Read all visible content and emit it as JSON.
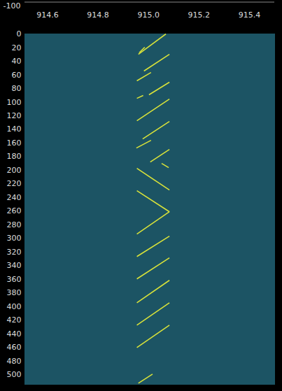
{
  "chart_data": {
    "type": "spectrogram",
    "annotations": [
      "-100"
    ],
    "color": "#d8e23a",
    "xlim": [
      914.51,
      915.5
    ],
    "xticks": [
      914.6,
      914.8,
      {
        "value": 915,
        "label": "915.0"
      },
      915.2,
      915.4
    ],
    "ylim": [
      0,
      514
    ],
    "yticks": [
      0,
      20,
      40,
      60,
      80,
      100,
      120,
      140,
      160,
      180,
      200,
      220,
      240,
      260,
      280,
      300,
      320,
      340,
      360,
      380,
      400,
      420,
      440,
      460,
      480,
      500
    ],
    "segments": [
      {
        "x": [
          914.96,
          915.069
        ],
        "y": [
          29.8,
          0
        ]
      },
      {
        "x": [
          914.963,
          914.985
        ],
        "y": [
          27.7,
          19.5
        ]
      },
      {
        "x": [
          914.982,
          915.083
        ],
        "y": [
          54.4,
          29.8
        ]
      },
      {
        "x": [
          914.954,
          915.01
        ],
        "y": [
          68.8,
          56.5
        ]
      },
      {
        "x": [
          915.002,
          915.083
        ],
        "y": [
          89.3,
          70.8
        ]
      },
      {
        "x": [
          914.954,
          914.979
        ],
        "y": [
          94.5,
          90.3
        ]
      },
      {
        "x": [
          914.954,
          915.083
        ],
        "y": [
          127.3,
          95.5
        ]
      },
      {
        "x": [
          914.977,
          915.083
        ],
        "y": [
          154.0,
          128.3
        ]
      },
      {
        "x": [
          914.952,
          915.01
        ],
        "y": [
          167.4,
          156.1
        ]
      },
      {
        "x": [
          915.007,
          915.083
        ],
        "y": [
          187.9,
          169.4
        ]
      },
      {
        "x": [
          915.052,
          915.08
        ],
        "y": [
          189.9,
          196.1
        ]
      },
      {
        "x": [
          914.954,
          915.083
        ],
        "y": [
          197.1,
          229.0
        ]
      },
      {
        "x": [
          914.954,
          915.083
        ],
        "y": [
          230.0,
          260.8
        ]
      },
      {
        "x": [
          915.083,
          914.954
        ],
        "y": [
          260.8,
          293.6
        ]
      },
      {
        "x": [
          914.954,
          915.083
        ],
        "y": [
          326.5,
          296.7
        ]
      },
      {
        "x": [
          914.954,
          915.083
        ],
        "y": [
          359.3,
          328.5
        ]
      },
      {
        "x": [
          914.954,
          915.083
        ],
        "y": [
          394.3,
          361.4
        ]
      },
      {
        "x": [
          914.954,
          915.083
        ],
        "y": [
          427.1,
          394.3
        ]
      },
      {
        "x": [
          914.954,
          915.083
        ],
        "y": [
          460.0,
          427.1
        ]
      },
      {
        "x": [
          914.96,
          915.016
        ],
        "y": [
          512.3,
          499.0
        ]
      }
    ]
  }
}
